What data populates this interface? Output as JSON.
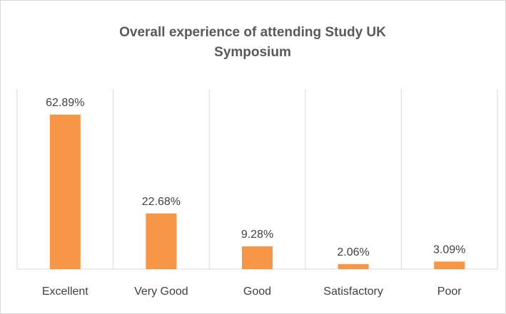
{
  "chart_data": {
    "type": "bar",
    "title": "Overall experience of attending Study UK Symposium",
    "categories": [
      "Excellent",
      "Very Good",
      "Good",
      "Satisfactory",
      "Poor"
    ],
    "values": [
      62.89,
      22.68,
      9.28,
      2.06,
      3.09
    ],
    "value_labels": [
      "62.89%",
      "22.68%",
      "9.28%",
      "2.06%",
      "3.09%"
    ],
    "color": "#f79646"
  }
}
